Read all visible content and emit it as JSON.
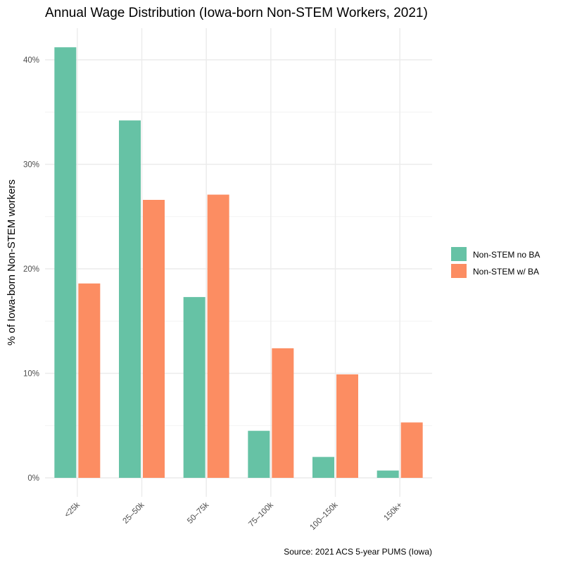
{
  "chart_data": {
    "type": "bar",
    "title": "Annual Wage Distribution (Iowa-born Non-STEM Workers, 2021)",
    "xlabel": "",
    "ylabel": "% of Iowa-born Non-STEM workers",
    "caption": "Source: 2021 ACS 5-year PUMS (Iowa)",
    "categories": [
      "<25k",
      "25–50k",
      "50–75k",
      "75–100k",
      "100–150k",
      "150k+"
    ],
    "series": [
      {
        "name": "Non-STEM no BA",
        "color": "#66c2a5",
        "values": [
          41.2,
          34.2,
          17.3,
          4.5,
          2.0,
          0.7
        ]
      },
      {
        "name": "Non-STEM w/ BA",
        "color": "#fc8d62",
        "values": [
          18.6,
          26.6,
          27.1,
          12.4,
          9.9,
          5.3
        ]
      }
    ],
    "ylim": [
      0,
      42
    ],
    "yticks": [
      0,
      10,
      20,
      30,
      40
    ],
    "ytick_labels": [
      "0%",
      "10%",
      "20%",
      "30%",
      "40%"
    ],
    "grid": true,
    "legend_position": "right"
  }
}
